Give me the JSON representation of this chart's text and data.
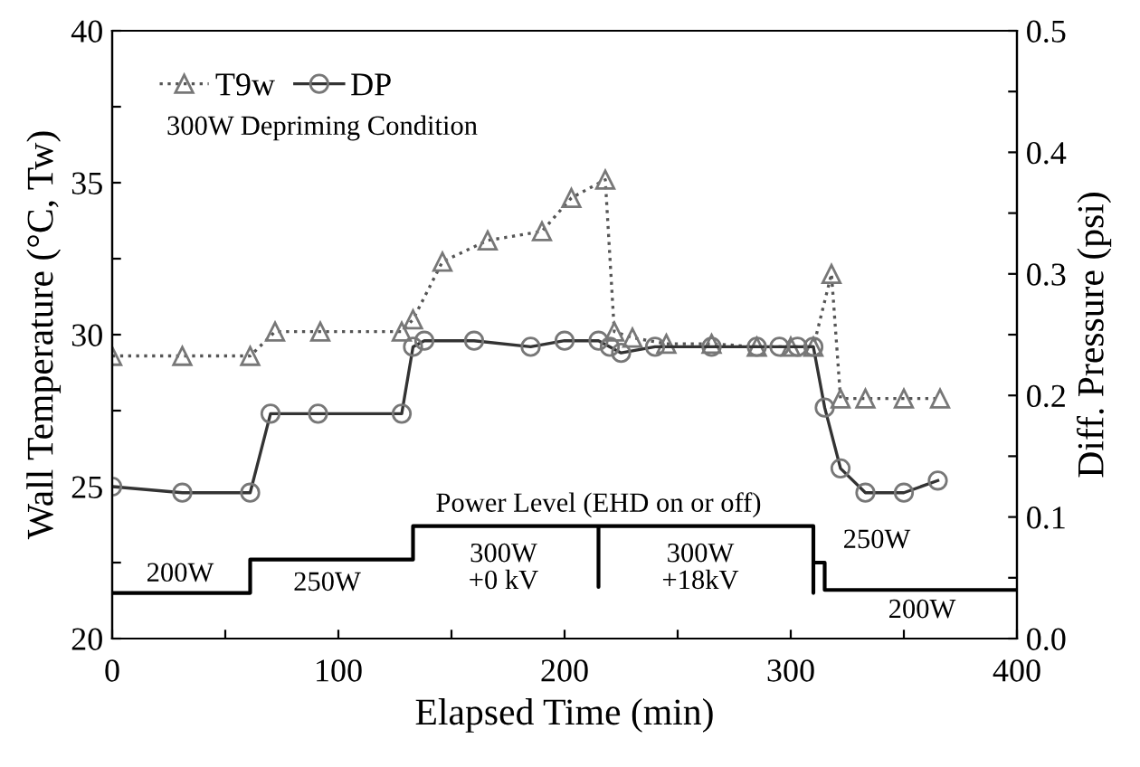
{
  "chart_data": {
    "type": "line",
    "xlabel": "Elapsed Time (min)",
    "ylabel": "Wall Temperature (°C, Tw)",
    "y2label": "Diff. Pressure (psi)",
    "xlim": [
      0,
      400
    ],
    "ylim": [
      20,
      40
    ],
    "y2lim": [
      0,
      0.5
    ],
    "xticks": [
      0,
      {
        "value": 50,
        "label": null
      },
      100,
      {
        "value": 150,
        "label": null
      },
      200,
      {
        "value": 250,
        "label": null
      },
      300,
      {
        "value": 350,
        "label": null
      },
      400
    ],
    "yticks": [
      20,
      {
        "value": 22.5,
        "label": null
      },
      25,
      {
        "value": 27.5,
        "label": null
      },
      30,
      {
        "value": 32.5,
        "label": null
      },
      35,
      {
        "value": 37.5,
        "label": null
      },
      40
    ],
    "y2ticks": [
      {
        "value": 0,
        "label": "0.0"
      },
      {
        "value": 0.05,
        "label": null
      },
      0.1,
      {
        "value": 0.15,
        "label": null
      },
      0.2,
      {
        "value": 0.25,
        "label": null
      },
      0.3,
      {
        "value": 0.35,
        "label": null
      },
      0.4,
      {
        "value": 0.45,
        "label": null
      },
      0.5
    ],
    "legend": "top left",
    "grid": false,
    "series": [
      {
        "name": "T9w",
        "color": "#555555",
        "marker": "triangle",
        "line_style": "dotted",
        "x": [
          0,
          31,
          61,
          72,
          92,
          128,
          133,
          146,
          166,
          190,
          203,
          218,
          222,
          230,
          245,
          265,
          285,
          300,
          310,
          318,
          322,
          333,
          350,
          366
        ],
        "values": [
          29.3,
          29.3,
          29.3,
          30.1,
          30.1,
          30.1,
          30.5,
          32.4,
          33.1,
          33.4,
          34.5,
          35.1,
          30.1,
          29.9,
          29.7,
          29.7,
          29.6,
          29.6,
          29.6,
          32.0,
          27.9,
          27.9,
          27.9,
          27.9
        ]
      },
      {
        "name": "DP",
        "color": "#333333",
        "marker": "circle",
        "line_style": "solid",
        "axis": "y2",
        "x": [
          0,
          31,
          61,
          70,
          91,
          128,
          133,
          138,
          160,
          185,
          200,
          215,
          220,
          225,
          240,
          265,
          285,
          295,
          303,
          310,
          315,
          322,
          333,
          350,
          365
        ],
        "values": [
          0.125,
          0.12,
          0.12,
          0.185,
          0.185,
          0.185,
          0.24,
          0.245,
          0.245,
          0.24,
          0.245,
          0.245,
          0.24,
          0.235,
          0.24,
          0.24,
          0.24,
          0.24,
          0.24,
          0.24,
          0.19,
          0.14,
          0.12,
          0.12,
          0.13
        ]
      },
      {
        "color": "#000000",
        "marker": "none",
        "line_style": "solid",
        "x": [
          0,
          61,
          61,
          133,
          133,
          215,
          215,
          215,
          310,
          310,
          310,
          315,
          315,
          400
        ],
        "values": [
          21.5,
          21.5,
          22.6,
          22.6,
          23.7,
          23.7,
          21.7,
          23.7,
          23.7,
          21.5,
          22.5,
          22.5,
          21.6,
          21.6
        ]
      }
    ],
    "annotations": [
      "300W Depriming Condition",
      "Power Level (EHD on or off)",
      "200W",
      "250W",
      "300W\n+0 kV",
      "300W\n+18kV",
      "250W",
      "200W"
    ]
  }
}
